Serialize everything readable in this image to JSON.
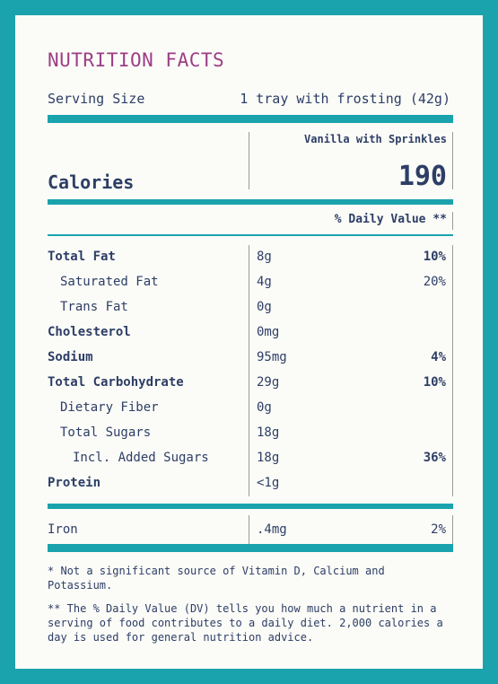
{
  "title": "NUTRITION FACTS",
  "serving": {
    "label": "Serving Size",
    "value": "1 tray with frosting (42g)"
  },
  "variant": "Vanilla with Sprinkles",
  "calories": {
    "label": "Calories",
    "value": "190"
  },
  "dv_header": "% Daily Value **",
  "nutrients": [
    {
      "name": "Total Fat",
      "amount": "8g",
      "dv": "10%"
    },
    {
      "name": "Saturated Fat",
      "amount": "4g",
      "dv": "20%"
    },
    {
      "name": "Trans Fat",
      "amount": "0g",
      "dv": ""
    },
    {
      "name": "Cholesterol",
      "amount": "0mg",
      "dv": ""
    },
    {
      "name": "Sodium",
      "amount": "95mg",
      "dv": "4%"
    },
    {
      "name": "Total Carbohydrate",
      "amount": "29g",
      "dv": "10%"
    },
    {
      "name": "Dietary Fiber",
      "amount": "0g",
      "dv": ""
    },
    {
      "name": "Total Sugars",
      "amount": "18g",
      "dv": ""
    },
    {
      "name": "Incl. Added Sugars",
      "amount": "18g",
      "dv": "36%"
    },
    {
      "name": "Protein",
      "amount": "<1g",
      "dv": ""
    }
  ],
  "iron": {
    "name": "Iron",
    "amount": ".4mg",
    "dv": "2%"
  },
  "footnotes": [
    "* Not a significant source of Vitamin D, Calcium and Potassium.",
    "** The % Daily Value (DV) tells you how much a nutrient in a serving of food contributes to a daily diet. 2,000 calories a day is used for general nutrition advice."
  ],
  "colors": {
    "teal": "#1aa3ad",
    "title": "#9c3f86",
    "text": "#2d3e66"
  }
}
